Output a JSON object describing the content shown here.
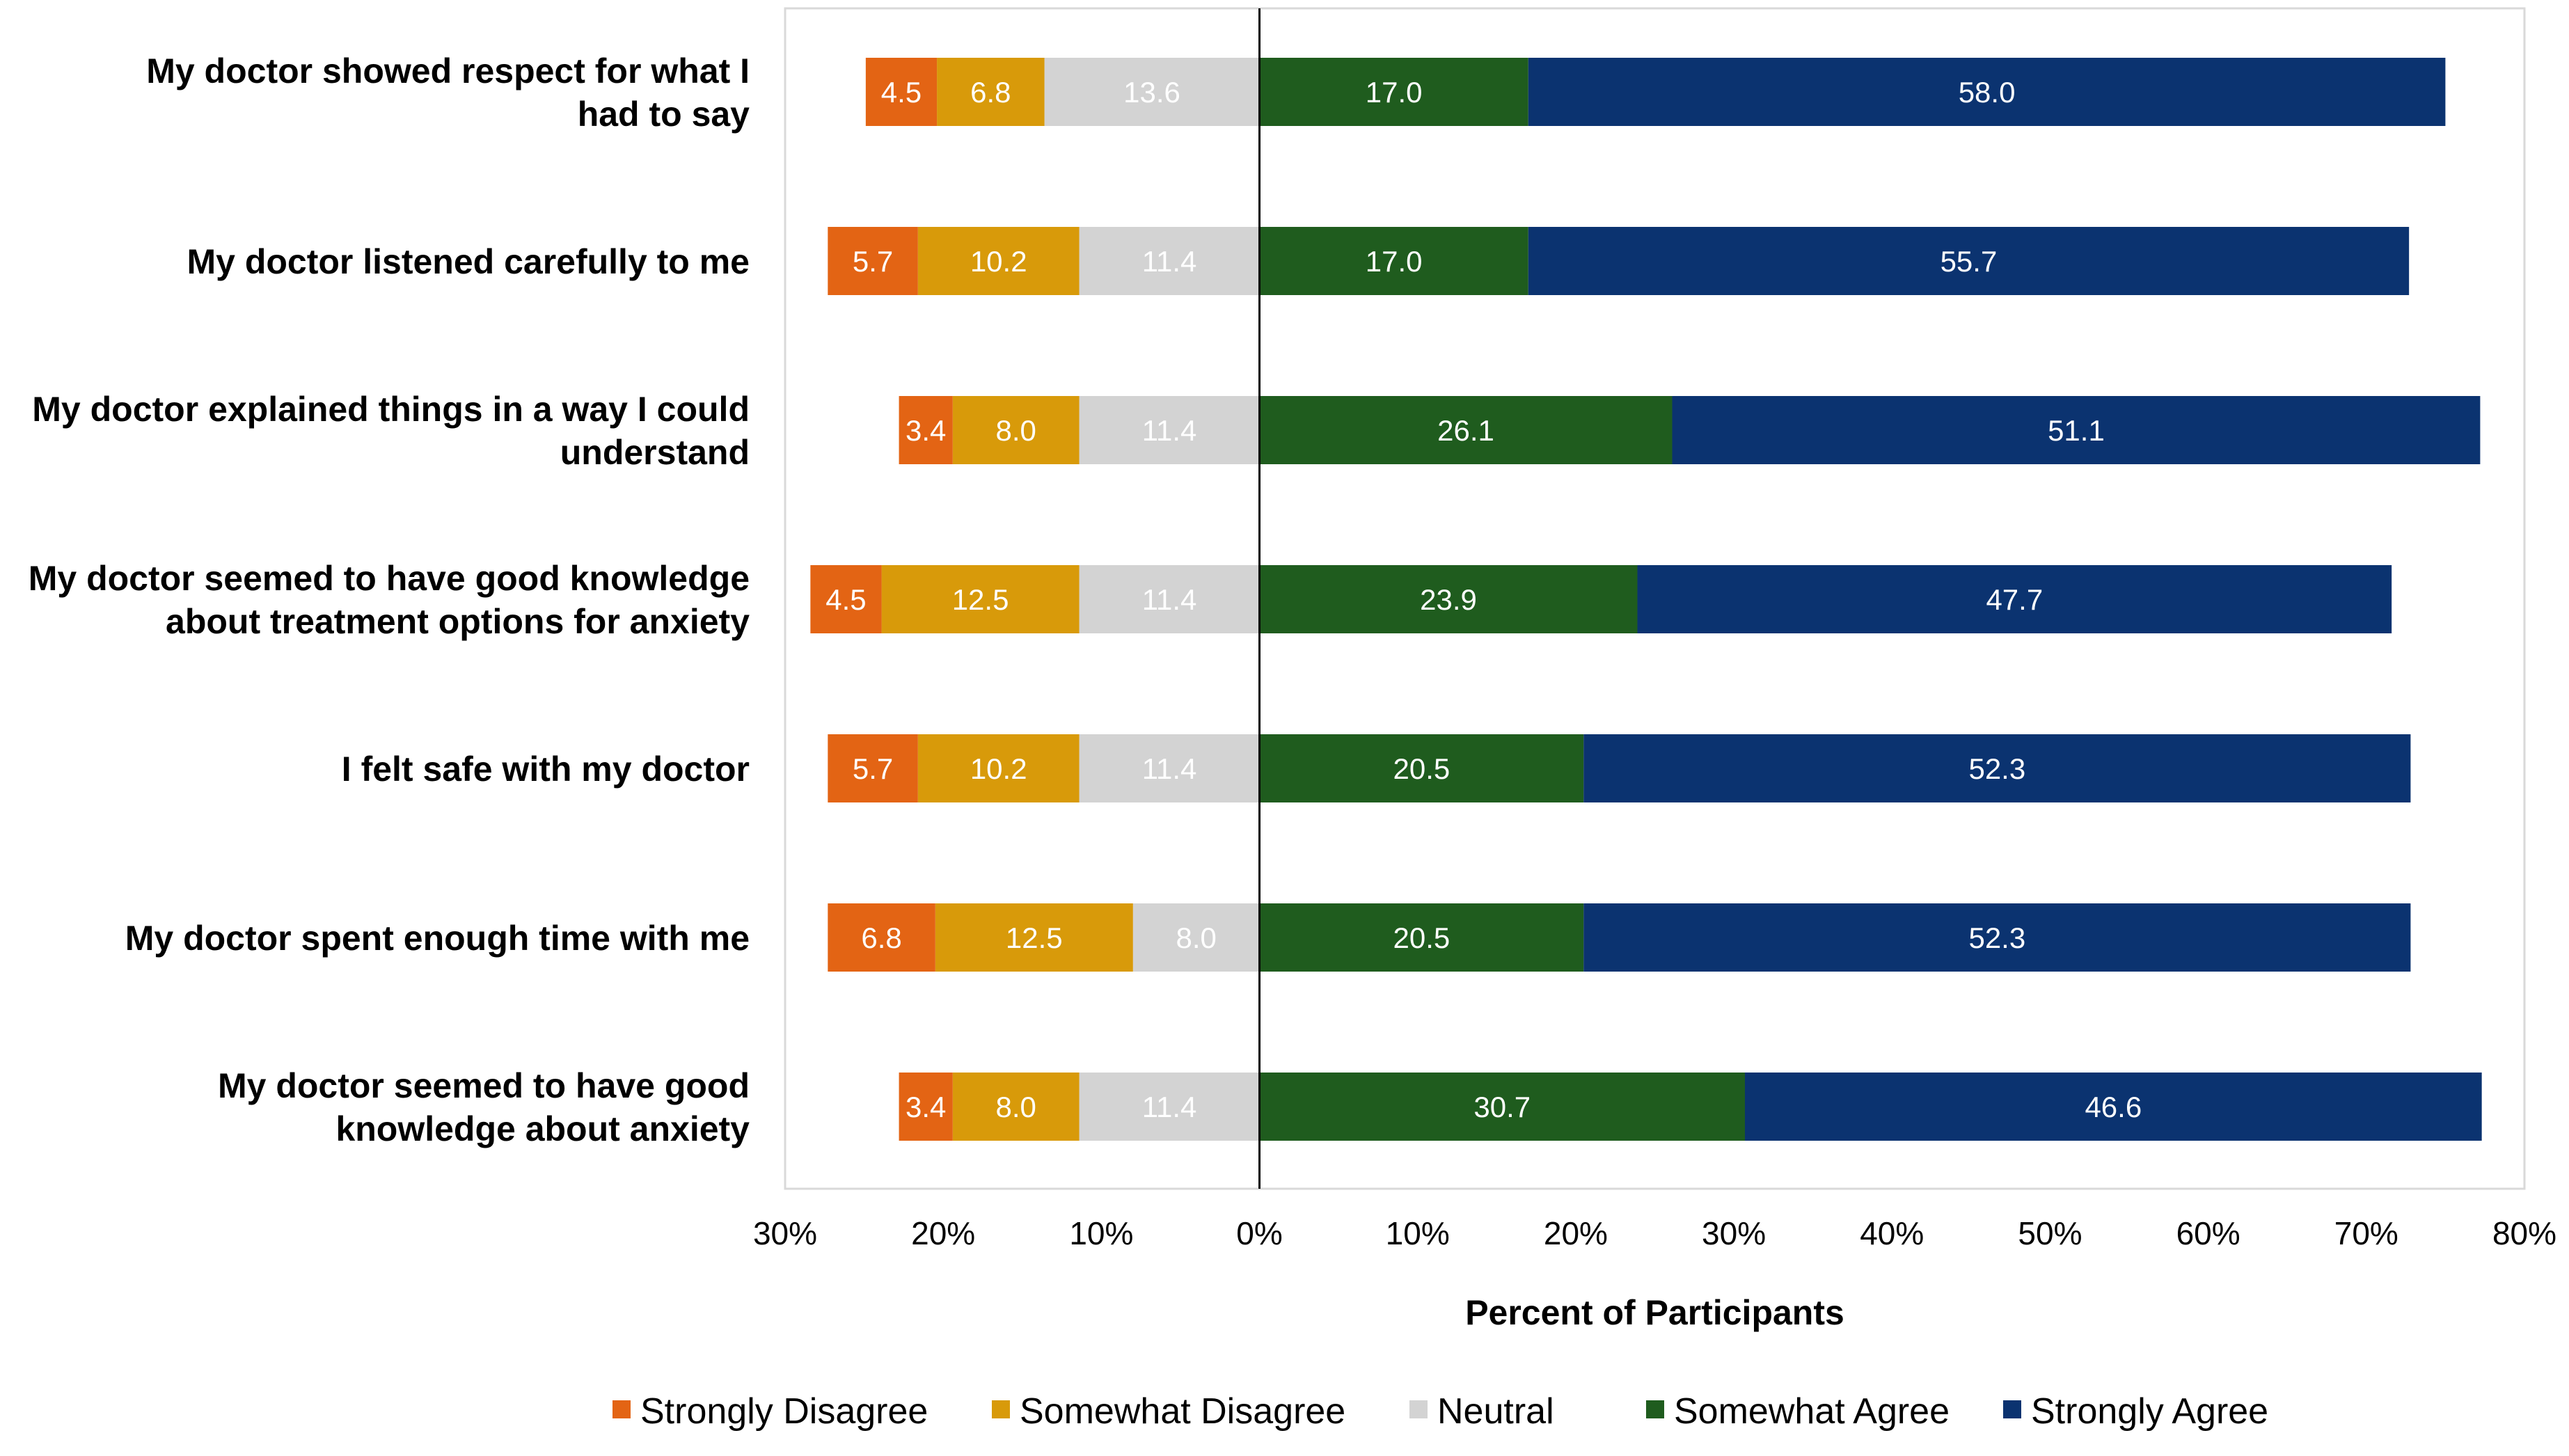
{
  "chart_data": {
    "type": "bar",
    "orientation": "horizontal",
    "stacked": true,
    "diverging": true,
    "categories": [
      [
        "My doctor showed respect for what I",
        "had to say"
      ],
      [
        "My doctor listened carefully to me"
      ],
      [
        "My doctor explained things in a way I could",
        "understand"
      ],
      [
        "My doctor seemed to have good knowledge",
        "about treatment options for anxiety"
      ],
      [
        "I felt safe with my doctor"
      ],
      [
        "My doctor spent enough time with me"
      ],
      [
        "My doctor seemed to have good",
        "knowledge about anxiety"
      ]
    ],
    "negative_series": [
      {
        "name": "Strongly Disagree",
        "color": "#E36414",
        "label_color": "#ffffff",
        "values": [
          4.5,
          5.7,
          3.4,
          4.5,
          5.7,
          6.8,
          3.4
        ]
      },
      {
        "name": "Somewhat Disagree",
        "color": "#D89A0A",
        "label_color": "#ffffff",
        "values": [
          6.8,
          10.2,
          8.0,
          12.5,
          10.2,
          12.5,
          8.0
        ]
      },
      {
        "name": "Neutral",
        "color": "#D3D3D3",
        "label_color": "#ffffff",
        "values": [
          13.6,
          11.4,
          11.4,
          11.4,
          11.4,
          8.0,
          11.4
        ]
      }
    ],
    "positive_series": [
      {
        "name": "Somewhat Agree",
        "color": "#1F5C1E",
        "label_color": "#ffffff",
        "values": [
          17.0,
          17.0,
          26.1,
          23.9,
          20.5,
          20.5,
          30.7
        ]
      },
      {
        "name": "Strongly Agree",
        "color": "#0B3370",
        "label_color": "#ffffff",
        "values": [
          58.0,
          55.7,
          51.1,
          47.7,
          52.3,
          52.3,
          46.6
        ]
      }
    ],
    "legend_order": [
      "Strongly Disagree",
      "Somewhat Disagree",
      "Neutral",
      "Somewhat Agree",
      "Strongly Agree"
    ],
    "xlim": [
      -30,
      80
    ],
    "xticks": [
      -30,
      -20,
      -10,
      0,
      10,
      20,
      30,
      40,
      50,
      60,
      70,
      80
    ],
    "xtick_labels": [
      "30%",
      "20%",
      "10%",
      "0%",
      "10%",
      "20%",
      "30%",
      "40%",
      "50%",
      "60%",
      "70%",
      "80%"
    ],
    "xlabel": "Percent of Participants",
    "ylabel": "",
    "title": "",
    "grid": false,
    "legend_position": "bottom"
  }
}
